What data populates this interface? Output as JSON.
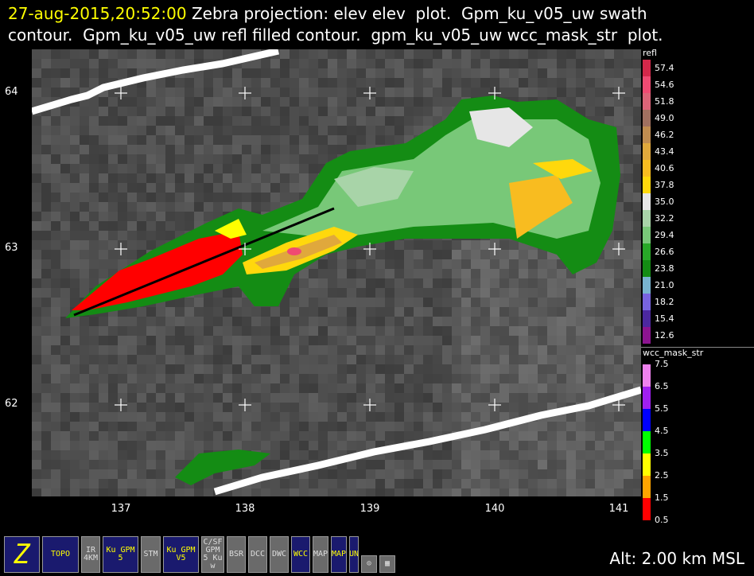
{
  "header": {
    "timestamp": "27-aug-2015,20:52:00",
    "line1": " Zebra projection: elev elev  plot.  Gpm_ku_v05_uw swath",
    "line2": "contour.  Gpm_ku_v05_uw refl filled contour.  gpm_ku_v05_uw wcc_mask_str  plot."
  },
  "axes": {
    "lat_labels": [
      "64",
      "63",
      "62"
    ],
    "lon_labels": [
      "137",
      "138",
      "139",
      "140",
      "141"
    ]
  },
  "legend_refl": {
    "title": "refl",
    "items": [
      {
        "label": "57.4",
        "color": "#d4284a"
      },
      {
        "label": "54.6",
        "color": "#f04a72"
      },
      {
        "label": "51.8",
        "color": "#dc6478"
      },
      {
        "label": "49.0",
        "color": "#a07060"
      },
      {
        "label": "46.2",
        "color": "#c08c50"
      },
      {
        "label": "43.4",
        "color": "#e0a83c"
      },
      {
        "label": "40.6",
        "color": "#f8bc20"
      },
      {
        "label": "37.8",
        "color": "#ffd80c"
      },
      {
        "label": "35.0",
        "color": "#e6e6e6"
      },
      {
        "label": "32.2",
        "color": "#a8d4a8"
      },
      {
        "label": "29.4",
        "color": "#78c878"
      },
      {
        "label": "26.6",
        "color": "#28a828"
      },
      {
        "label": "23.8",
        "color": "#148c14"
      },
      {
        "label": "21.0",
        "color": "#78b4d0"
      },
      {
        "label": "18.2",
        "color": "#7864e0"
      },
      {
        "label": "15.4",
        "color": "#4c28a0"
      },
      {
        "label": "12.6",
        "color": "#8c1490"
      }
    ]
  },
  "legend_wcc": {
    "title": "wcc_mask_str",
    "items": [
      {
        "label": "7.5",
        "color": "#ee82ee"
      },
      {
        "label": "6.5",
        "color": "#a020f0"
      },
      {
        "label": "5.5",
        "color": "#0000ff"
      },
      {
        "label": "4.5",
        "color": "#00ff00"
      },
      {
        "label": "3.5",
        "color": "#ffff00"
      },
      {
        "label": "2.5",
        "color": "#ffa500"
      },
      {
        "label": "1.5",
        "color": "#ff0000"
      },
      {
        "label": "0.5",
        "color": ""
      }
    ]
  },
  "toolbar": [
    {
      "name": "zebra-icon",
      "label": "Z"
    },
    {
      "name": "topo-icon",
      "label": "TOPO"
    },
    {
      "name": "ir-icon",
      "label": "IR 4KM"
    },
    {
      "name": "gpm-ku-icon",
      "label": "Ku GPM 5"
    },
    {
      "name": "stm-icon",
      "label": "STM"
    },
    {
      "name": "gpm-ku-v5-icon",
      "label": "Ku GPM V5"
    },
    {
      "name": "csf-icon",
      "label": "C/SF GPM 5 Ku w"
    },
    {
      "name": "bsr-icon",
      "label": "BSR"
    },
    {
      "name": "dcc-icon",
      "label": "DCC"
    },
    {
      "name": "dwc-icon",
      "label": "DWC"
    },
    {
      "name": "wcc-icon",
      "label": "WCC"
    },
    {
      "name": "map-grey-icon",
      "label": "MAP"
    },
    {
      "name": "map-yellow-icon",
      "label": "MAP"
    },
    {
      "name": "bounds-icon",
      "label": "BOUNDS"
    },
    {
      "name": "circle-icon",
      "label": "⊙"
    },
    {
      "name": "grid-icon",
      "label": "▦"
    }
  ],
  "status": {
    "altitude": "Alt: 2.00 km MSL"
  }
}
